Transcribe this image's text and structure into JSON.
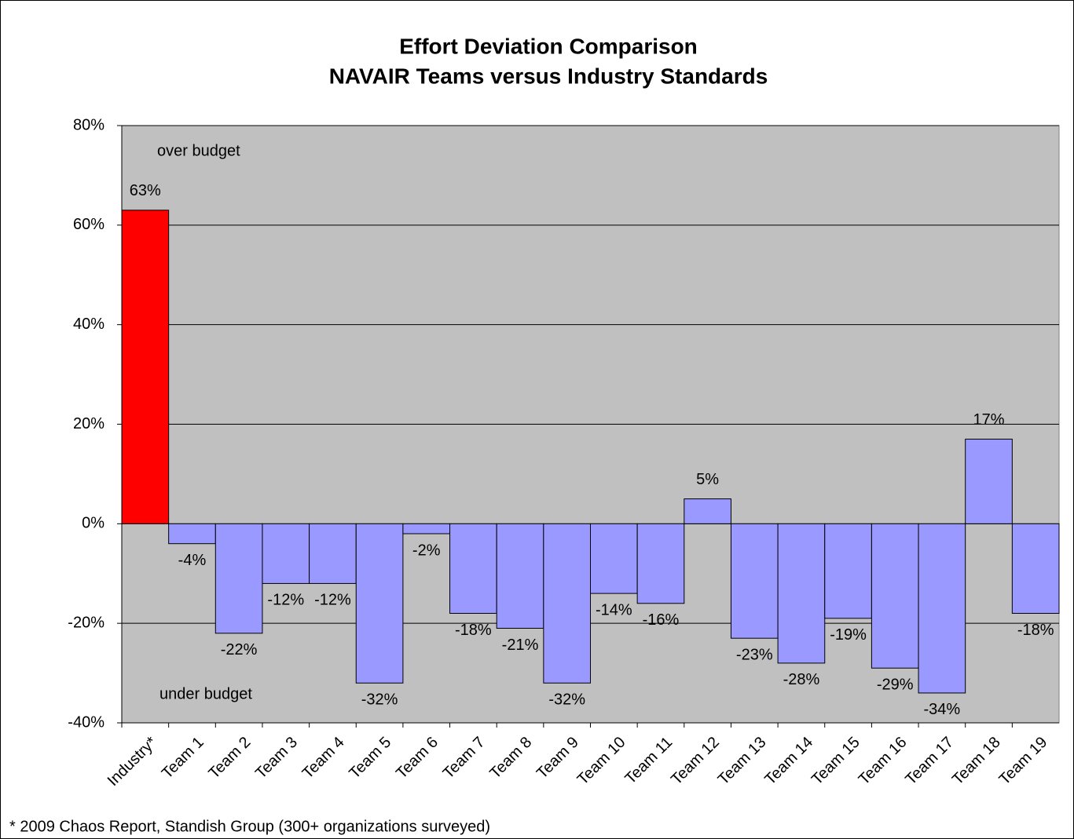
{
  "chart_data": {
    "type": "bar",
    "title": "Effort Deviation Comparison",
    "subtitle": "NAVAIR Teams versus Industry Standards",
    "categories": [
      "Industry*",
      "Team 1",
      "Team 2",
      "Team 3",
      "Team 4",
      "Team 5",
      "Team 6",
      "Team 7",
      "Team 8",
      "Team 9",
      "Team 10",
      "Team 11",
      "Team 12",
      "Team 13",
      "Team 14",
      "Team 15",
      "Team 16",
      "Team 17",
      "Team 18",
      "Team 19"
    ],
    "values": [
      63,
      -4,
      -22,
      -12,
      -12,
      -32,
      -2,
      -18,
      -21,
      -32,
      -14,
      -16,
      5,
      -23,
      -28,
      -19,
      -29,
      -34,
      17,
      -18
    ],
    "value_labels": [
      "63%",
      "-4%",
      "-22%",
      "-12%",
      "-12%",
      "-32%",
      "-2%",
      "-18%",
      "-21%",
      "-32%",
      "-14%",
      "-16%",
      "5%",
      "-23%",
      "-28%",
      "-19%",
      "-29%",
      "-34%",
      "17%",
      "-18%"
    ],
    "colors": [
      "#ff0000",
      "#9999ff",
      "#9999ff",
      "#9999ff",
      "#9999ff",
      "#9999ff",
      "#9999ff",
      "#9999ff",
      "#9999ff",
      "#9999ff",
      "#9999ff",
      "#9999ff",
      "#9999ff",
      "#9999ff",
      "#9999ff",
      "#9999ff",
      "#9999ff",
      "#9999ff",
      "#9999ff",
      "#9999ff"
    ],
    "ylim": [
      -40,
      80
    ],
    "yticks": [
      {
        "value": -40,
        "label": "-40%"
      },
      {
        "value": -20,
        "label": "-20%"
      },
      {
        "value": 0,
        "label": "0%"
      },
      {
        "value": 20,
        "label": "20%"
      },
      {
        "value": 40,
        "label": "40%"
      },
      {
        "value": 60,
        "label": "60%"
      },
      {
        "value": 80,
        "label": "80%"
      }
    ],
    "grid": true,
    "annotations": [
      "over budget",
      "under budget"
    ],
    "footnote": "* 2009 Chaos Report, Standish Group (300+ organizations surveyed)"
  }
}
